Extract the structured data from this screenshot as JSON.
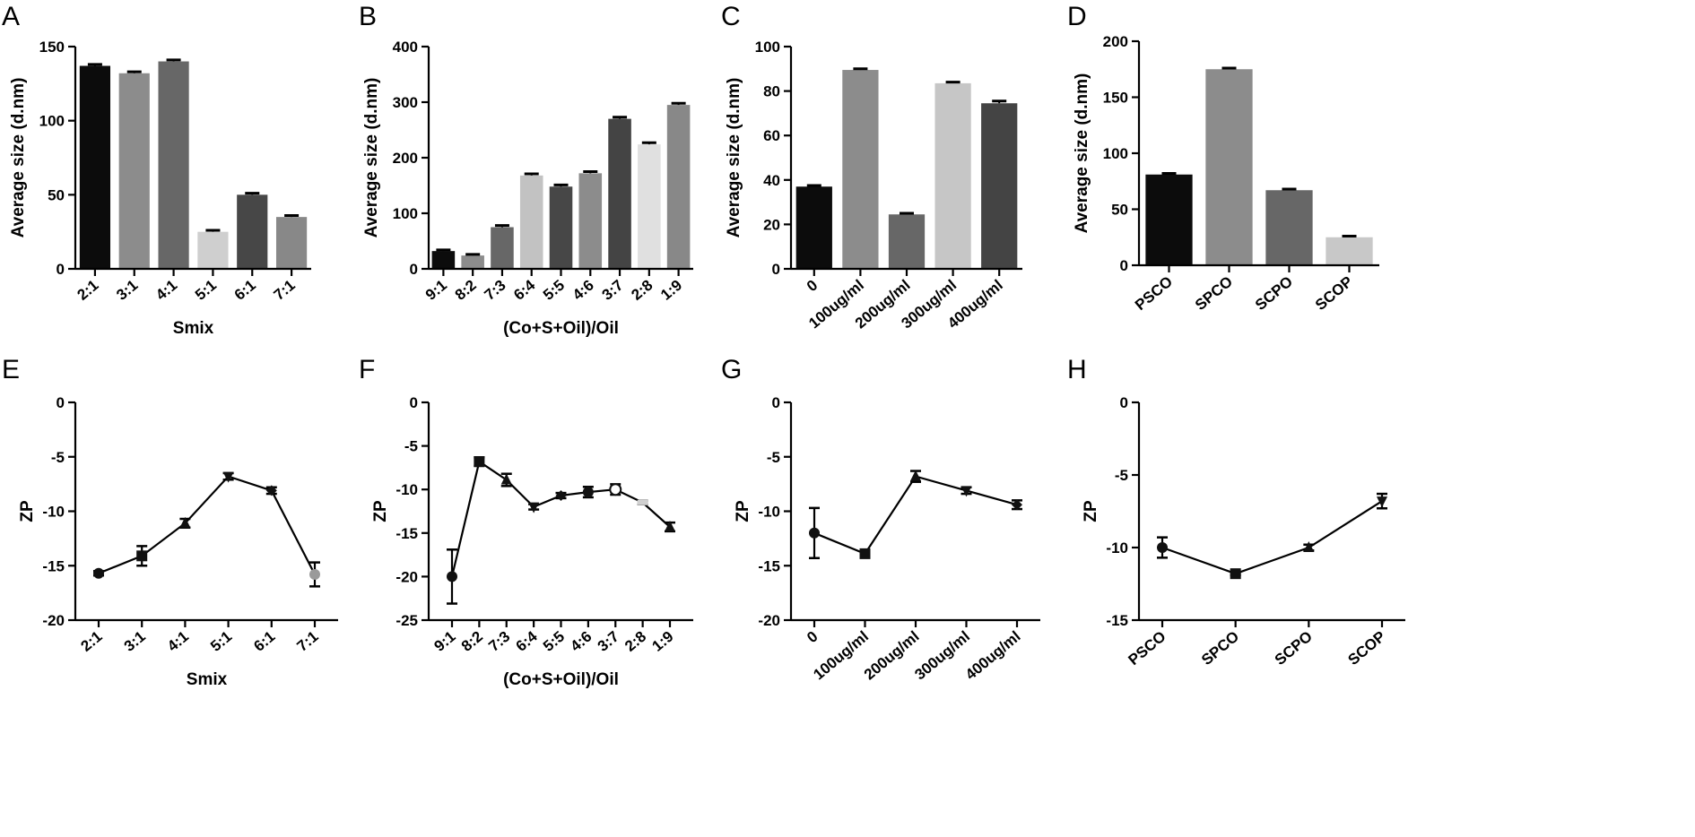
{
  "chart_data": [
    {
      "panel": "A",
      "type": "bar",
      "categories": [
        "2:1",
        "3:1",
        "4:1",
        "5:1",
        "6:1",
        "7:1"
      ],
      "values": [
        137,
        132,
        140,
        25,
        50,
        35
      ],
      "errors": [
        1,
        1,
        1,
        1,
        1,
        1
      ],
      "colors": [
        "#0c0c0c",
        "#8c8c8c",
        "#676767",
        "#cfcfcf",
        "#474747",
        "#888888"
      ],
      "xlabel": "Smix",
      "ylabel": "Average size (d.nm)",
      "ylim": [
        0,
        150
      ],
      "yticks": [
        0,
        50,
        100,
        150
      ],
      "xtick_rotation": -40
    },
    {
      "panel": "B",
      "type": "bar",
      "categories": [
        "9:1",
        "8:2",
        "7:3",
        "6:4",
        "5:5",
        "4:6",
        "3:7",
        "2:8",
        "1:9"
      ],
      "values": [
        32,
        24,
        75,
        168,
        148,
        172,
        270,
        224,
        295
      ],
      "errors": [
        2,
        2,
        3,
        3,
        3,
        3,
        3,
        3,
        3
      ],
      "colors": [
        "#0c0c0c",
        "#8c8c8c",
        "#676767",
        "#c2c2c2",
        "#474747",
        "#8c8c8c",
        "#444444",
        "#e0e0e0",
        "#888888"
      ],
      "xlabel": "(Co+S+Oil)/Oil",
      "ylabel": "Average size (d.nm)",
      "ylim": [
        0,
        400
      ],
      "yticks": [
        0,
        100,
        200,
        300,
        400
      ],
      "xtick_rotation": -40
    },
    {
      "panel": "C",
      "type": "bar",
      "categories": [
        "0",
        "100ug/ml",
        "200ug/ml",
        "300ug/ml",
        "400ug/ml"
      ],
      "values": [
        37,
        89.5,
        24.5,
        83.5,
        74.5
      ],
      "errors": [
        0.5,
        0.5,
        0.5,
        0.5,
        1
      ],
      "colors": [
        "#0c0c0c",
        "#8c8c8c",
        "#676767",
        "#c6c6c6",
        "#444444"
      ],
      "xlabel": "",
      "ylabel": "Average size (d.nm)",
      "ylim": [
        0,
        100
      ],
      "yticks": [
        0,
        20,
        40,
        60,
        80,
        100
      ],
      "xtick_rotation": -40
    },
    {
      "panel": "D",
      "type": "bar",
      "categories": [
        "PSCO",
        "SPCO",
        "SCPO",
        "SCOP"
      ],
      "values": [
        81,
        175,
        67,
        25
      ],
      "errors": [
        1,
        1,
        1,
        1
      ],
      "colors": [
        "#0c0c0c",
        "#8c8c8c",
        "#676767",
        "#c8c8c8"
      ],
      "xlabel": "",
      "ylabel": "Average size (d.nm)",
      "ylim": [
        0,
        200
      ],
      "yticks": [
        0,
        50,
        100,
        150,
        200
      ],
      "xtick_rotation": -40
    },
    {
      "panel": "E",
      "type": "line",
      "categories": [
        "2:1",
        "3:1",
        "4:1",
        "5:1",
        "6:1",
        "7:1"
      ],
      "values": [
        -15.7,
        -14.1,
        -11.1,
        -6.8,
        -8.1,
        -15.8
      ],
      "errors": [
        0.2,
        0.9,
        0.4,
        0.3,
        0.3,
        1.1
      ],
      "markers": [
        "circle",
        "square",
        "triangle",
        "triangle-down",
        "diamond",
        "circle-gray"
      ],
      "xlabel": "Smix",
      "ylabel": "ZP",
      "ylim": [
        -20,
        0
      ],
      "yticks": [
        0,
        -5,
        -10,
        -15,
        -20
      ],
      "xtick_rotation": -40
    },
    {
      "panel": "F",
      "type": "line",
      "categories": [
        "9:1",
        "8:2",
        "7:3",
        "6:4",
        "5:5",
        "4:6",
        "3:7",
        "2:8",
        "1:9"
      ],
      "values": [
        -20,
        -6.8,
        -8.9,
        -12,
        -10.7,
        -10.3,
        -10,
        -11.5,
        -14.3
      ],
      "errors": [
        3.1,
        0.5,
        0.7,
        0.3,
        0.3,
        0.6,
        0.6,
        0.2,
        0.5
      ],
      "markers": [
        "circle",
        "square",
        "triangle",
        "triangle-down",
        "diamond",
        "circle",
        "circle-open",
        "square-light",
        "triangle"
      ],
      "xlabel": "(Co+S+Oil)/Oil",
      "ylabel": "ZP",
      "ylim": [
        -25,
        0
      ],
      "yticks": [
        0,
        -5,
        -10,
        -15,
        -20,
        -25
      ],
      "xtick_rotation": -40
    },
    {
      "panel": "G",
      "type": "line",
      "categories": [
        "0",
        "100ug/ml",
        "200ug/ml",
        "300ug/ml",
        "400ug/ml"
      ],
      "values": [
        -12,
        -13.9,
        -6.8,
        -8.1,
        -9.4
      ],
      "errors": [
        2.3,
        0.2,
        0.5,
        0.3,
        0.4
      ],
      "markers": [
        "circle",
        "square",
        "triangle",
        "triangle-down",
        "diamond"
      ],
      "xlabel": "",
      "ylabel": "ZP",
      "ylim": [
        -20,
        0
      ],
      "yticks": [
        0,
        -5,
        -10,
        -15,
        -20
      ],
      "xtick_rotation": -40
    },
    {
      "panel": "H",
      "type": "line",
      "categories": [
        "PSCO",
        "SPCO",
        "SCPO",
        "SCOP"
      ],
      "values": [
        -10,
        -11.8,
        -10,
        -6.8
      ],
      "errors": [
        0.7,
        0.1,
        0.2,
        0.5
      ],
      "markers": [
        "circle",
        "square",
        "triangle",
        "triangle-down"
      ],
      "xlabel": "",
      "ylabel": "ZP",
      "ylim": [
        -15,
        0
      ],
      "yticks": [
        0,
        -5,
        -10,
        -15
      ],
      "xtick_rotation": -40
    }
  ]
}
